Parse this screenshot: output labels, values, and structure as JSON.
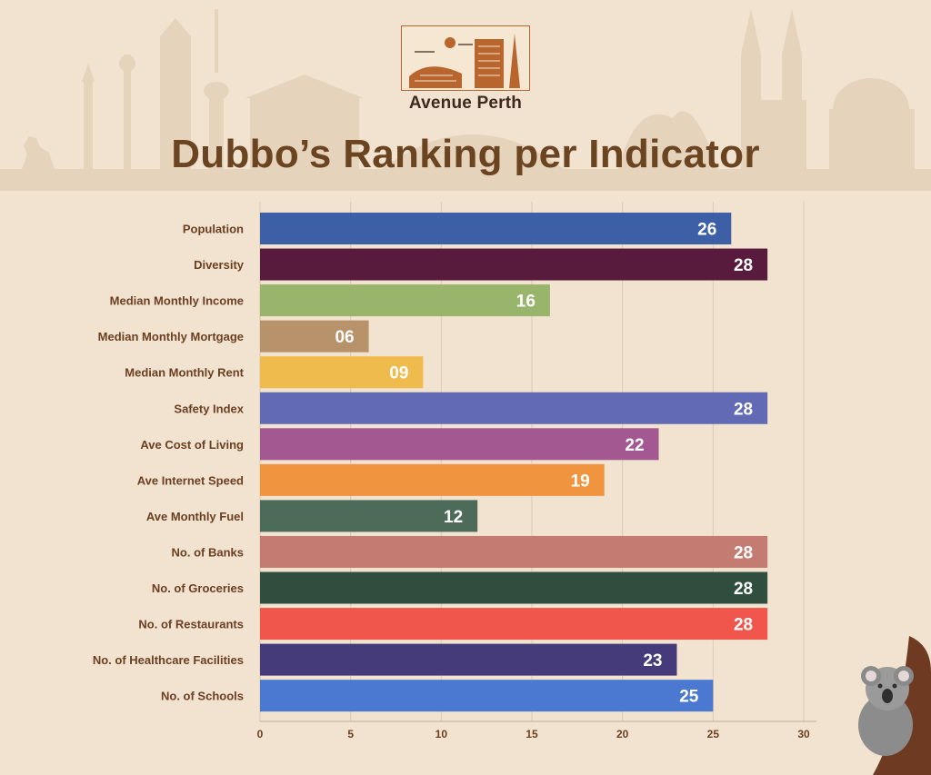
{
  "brand": {
    "name": "Avenue Perth"
  },
  "colors": {
    "background": "#f1e3cf",
    "title": "#6b4422",
    "label": "#6b3f22",
    "logo_accent": "#b8652e"
  },
  "chart_data": {
    "type": "bar",
    "orientation": "horizontal",
    "title": "Dubbo’s Ranking per Indicator",
    "categories": [
      "Population",
      "Diversity",
      "Median Monthly Income",
      "Median Monthly Mortgage",
      "Median Monthly Rent",
      "Safety Index",
      "Ave Cost of Living",
      "Ave Internet Speed",
      "Ave Monthly Fuel",
      "No. of Banks",
      "No. of Groceries",
      "No. of Restaurants",
      "No. of Healthcare Facilities",
      "No. of Schools"
    ],
    "values": [
      26,
      28,
      16,
      6,
      9,
      28,
      22,
      19,
      12,
      28,
      28,
      28,
      23,
      25
    ],
    "value_labels": [
      "26",
      "28",
      "16",
      "06",
      "09",
      "28",
      "22",
      "19",
      "12",
      "28",
      "28",
      "28",
      "23",
      "25"
    ],
    "bar_colors": [
      "#3d5fa6",
      "#581a3d",
      "#99b46b",
      "#b8926a",
      "#efbb4d",
      "#6269b5",
      "#a45891",
      "#f19440",
      "#4c6c59",
      "#c47b72",
      "#304e3e",
      "#f0564b",
      "#453b7a",
      "#4b79d1"
    ],
    "xlim": [
      0,
      30
    ],
    "xticks": [
      0,
      5,
      10,
      15,
      20,
      25,
      30
    ],
    "grid": true
  }
}
